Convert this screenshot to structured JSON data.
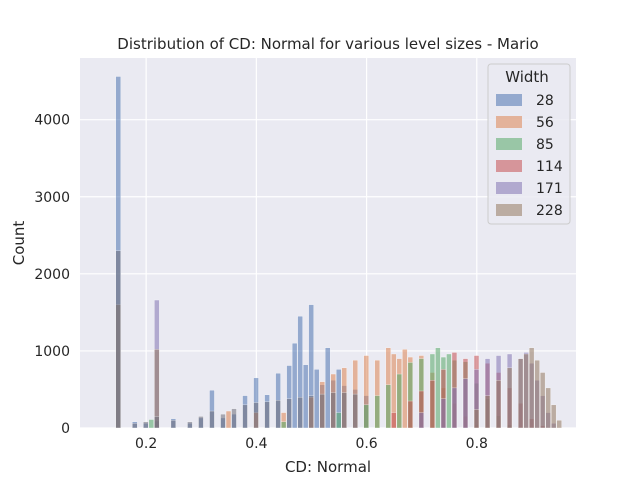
{
  "chart_data": {
    "type": "histogram",
    "title": "Distribution of CD: Normal for various level sizes - Mario",
    "xlabel": "CD: Normal",
    "ylabel": "Count",
    "xlim": [
      0.08,
      0.98
    ],
    "ylim": [
      0,
      4800
    ],
    "x_ticks": [
      0.2,
      0.4,
      0.6,
      0.8
    ],
    "y_ticks": [
      0,
      1000,
      2000,
      3000,
      4000
    ],
    "grid": true,
    "legend_title": "Width",
    "legend_position": "top-right",
    "bin_width": 0.01,
    "series": [
      {
        "name": "28",
        "color": "#4c72b0",
        "bins": [
          [
            0.15,
            4560
          ],
          [
            0.18,
            80
          ],
          [
            0.2,
            60
          ],
          [
            0.22,
            90
          ],
          [
            0.25,
            120
          ],
          [
            0.28,
            60
          ],
          [
            0.3,
            130
          ],
          [
            0.32,
            490
          ],
          [
            0.34,
            130
          ],
          [
            0.36,
            180
          ],
          [
            0.38,
            420
          ],
          [
            0.4,
            650
          ],
          [
            0.42,
            430
          ],
          [
            0.44,
            710
          ],
          [
            0.46,
            810
          ],
          [
            0.47,
            1100
          ],
          [
            0.48,
            1450
          ],
          [
            0.49,
            820
          ],
          [
            0.5,
            1600
          ],
          [
            0.51,
            760
          ],
          [
            0.52,
            560
          ],
          [
            0.53,
            1040
          ],
          [
            0.54,
            620
          ],
          [
            0.55,
            760
          ],
          [
            0.56,
            550
          ],
          [
            0.58,
            500
          ],
          [
            0.6,
            420
          ]
        ]
      },
      {
        "name": "56",
        "color": "#dd8452",
        "bins": [
          [
            0.35,
            220
          ],
          [
            0.4,
            200
          ],
          [
            0.45,
            200
          ],
          [
            0.5,
            400
          ],
          [
            0.52,
            600
          ],
          [
            0.54,
            700
          ],
          [
            0.56,
            780
          ],
          [
            0.58,
            880
          ],
          [
            0.6,
            940
          ],
          [
            0.62,
            880
          ],
          [
            0.64,
            1040
          ],
          [
            0.65,
            960
          ],
          [
            0.66,
            900
          ],
          [
            0.67,
            1020
          ],
          [
            0.68,
            920
          ],
          [
            0.7,
            940
          ],
          [
            0.72,
            720
          ],
          [
            0.74,
            520
          ],
          [
            0.76,
            320
          ],
          [
            0.78,
            150
          ],
          [
            0.8,
            40
          ]
        ]
      },
      {
        "name": "85",
        "color": "#55a868",
        "bins": [
          [
            0.21,
            110
          ],
          [
            0.45,
            80
          ],
          [
            0.55,
            200
          ],
          [
            0.6,
            300
          ],
          [
            0.62,
            420
          ],
          [
            0.64,
            560
          ],
          [
            0.66,
            700
          ],
          [
            0.68,
            850
          ],
          [
            0.7,
            900
          ],
          [
            0.72,
            960
          ],
          [
            0.73,
            1040
          ],
          [
            0.74,
            920
          ],
          [
            0.75,
            960
          ],
          [
            0.76,
            880
          ],
          [
            0.78,
            860
          ],
          [
            0.8,
            580
          ],
          [
            0.82,
            380
          ],
          [
            0.84,
            160
          ],
          [
            0.86,
            40
          ]
        ]
      },
      {
        "name": "114",
        "color": "#c44e52",
        "bins": [
          [
            0.65,
            200
          ],
          [
            0.68,
            350
          ],
          [
            0.7,
            480
          ],
          [
            0.72,
            620
          ],
          [
            0.74,
            760
          ],
          [
            0.76,
            980
          ],
          [
            0.78,
            900
          ],
          [
            0.8,
            940
          ],
          [
            0.82,
            840
          ],
          [
            0.84,
            720
          ],
          [
            0.86,
            520
          ],
          [
            0.88,
            320
          ],
          [
            0.9,
            120
          ],
          [
            0.92,
            30
          ]
        ]
      },
      {
        "name": "171",
        "color": "#8172b3",
        "bins": [
          [
            0.22,
            1660
          ],
          [
            0.7,
            200
          ],
          [
            0.74,
            380
          ],
          [
            0.76,
            520
          ],
          [
            0.78,
            640
          ],
          [
            0.8,
            760
          ],
          [
            0.82,
            900
          ],
          [
            0.84,
            940
          ],
          [
            0.86,
            960
          ],
          [
            0.88,
            900
          ],
          [
            0.89,
            980
          ],
          [
            0.9,
            840
          ],
          [
            0.91,
            620
          ],
          [
            0.92,
            420
          ],
          [
            0.93,
            200
          ],
          [
            0.94,
            60
          ]
        ]
      },
      {
        "name": "228",
        "color": "#937860",
        "bins": [
          [
            0.15,
            1600
          ],
          [
            0.22,
            1020
          ],
          [
            0.8,
            240
          ],
          [
            0.82,
            420
          ],
          [
            0.84,
            620
          ],
          [
            0.86,
            780
          ],
          [
            0.88,
            900
          ],
          [
            0.89,
            960
          ],
          [
            0.9,
            1040
          ],
          [
            0.91,
            880
          ],
          [
            0.92,
            720
          ],
          [
            0.93,
            520
          ],
          [
            0.94,
            300
          ],
          [
            0.95,
            100
          ]
        ]
      }
    ],
    "background": [
      [
        0.15,
        2300
      ],
      [
        0.18,
        60
      ],
      [
        0.2,
        80
      ],
      [
        0.22,
        150
      ],
      [
        0.25,
        100
      ],
      [
        0.28,
        80
      ],
      [
        0.3,
        150
      ],
      [
        0.32,
        220
      ],
      [
        0.34,
        180
      ],
      [
        0.36,
        250
      ],
      [
        0.38,
        300
      ],
      [
        0.4,
        330
      ],
      [
        0.42,
        340
      ],
      [
        0.44,
        360
      ],
      [
        0.46,
        380
      ],
      [
        0.48,
        400
      ],
      [
        0.5,
        420
      ],
      [
        0.52,
        440
      ],
      [
        0.54,
        460
      ],
      [
        0.56,
        460
      ],
      [
        0.58,
        440
      ]
    ]
  }
}
